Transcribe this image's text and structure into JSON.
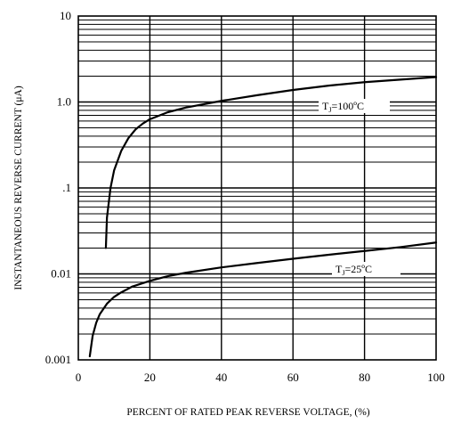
{
  "chart_data": {
    "type": "line",
    "title": "",
    "xlabel": "PERCENT OF RATED PEAK REVERSE VOLTAGE, (%)",
    "ylabel": "INSTANTANEOUS REVERSE CURRENT (μA)",
    "x_scale": "linear",
    "y_scale": "log",
    "xlim": [
      0,
      100
    ],
    "ylim": [
      0.001,
      10
    ],
    "x_ticks": [
      0,
      20,
      40,
      60,
      80,
      100
    ],
    "x_tick_labels": [
      "0",
      "20",
      "40",
      "60",
      "80",
      "100"
    ],
    "y_ticks": [
      0.001,
      0.01,
      0.1,
      1,
      10
    ],
    "y_tick_labels": [
      "0.001",
      "0.01",
      ".1",
      "1.0",
      "10"
    ],
    "grid": true,
    "line_color": "#000000",
    "series": [
      {
        "label": "T₁=100ºC",
        "label_main": "T",
        "label_sub": "J",
        "label_rest": "=100ºC",
        "x": [
          7.7,
          8,
          9,
          10,
          12,
          14,
          16,
          18,
          20,
          25,
          30,
          40,
          50,
          60,
          70,
          80,
          90,
          100
        ],
        "y": [
          0.02,
          0.045,
          0.1,
          0.16,
          0.27,
          0.38,
          0.48,
          0.56,
          0.63,
          0.76,
          0.86,
          1.03,
          1.2,
          1.38,
          1.55,
          1.7,
          1.82,
          1.95
        ]
      },
      {
        "label": "T₁=25ºC",
        "label_main": "T",
        "label_sub": "J",
        "label_rest": "=25ºC",
        "x": [
          3.2,
          4,
          5,
          6,
          8,
          10,
          12,
          15,
          18,
          20,
          25,
          30,
          40,
          50,
          60,
          70,
          80,
          90,
          100
        ],
        "y": [
          0.0011,
          0.0019,
          0.0027,
          0.0034,
          0.0045,
          0.0054,
          0.0061,
          0.0071,
          0.0078,
          0.0083,
          0.0094,
          0.0103,
          0.0119,
          0.0134,
          0.015,
          0.0167,
          0.0185,
          0.0205,
          0.0232
        ]
      }
    ]
  }
}
